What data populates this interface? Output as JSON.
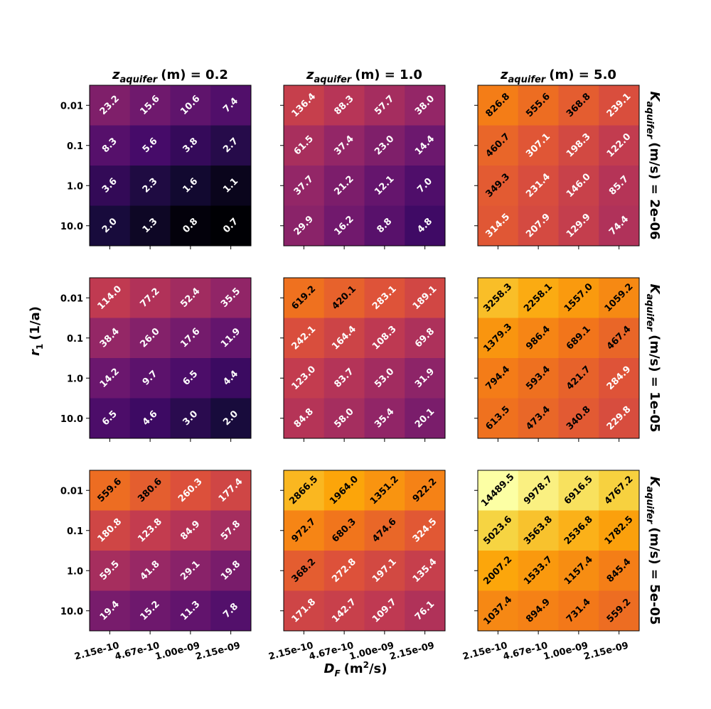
{
  "chart_data": {
    "type": "heatmap",
    "xlabel": "D",
    "xlabel_sub": "F",
    "xlabel_units": "(m",
    "xlabel_sup": "2",
    "xlabel_units_tail": "/s)",
    "ylabel": "r",
    "ylabel_sub": "1",
    "ylabel_units": "(1/a)",
    "x_categories": [
      "2.15e-10",
      "4.67e-10",
      "1.00e-09",
      "2.15e-09"
    ],
    "y_categories": [
      "0.01",
      "0.1",
      "1.0",
      "10.0"
    ],
    "column_title_prefix": "z",
    "column_title_sub": "aquifer",
    "column_title_mid": "(m) =",
    "column_values": [
      "0.2",
      "1.0",
      "5.0"
    ],
    "row_title_prefix": "K",
    "row_title_sub": "aquifer",
    "row_title_mid": "(m/s) =",
    "row_values": [
      "2e-06",
      "1e-05",
      "5e-05"
    ],
    "colormap": "inferno",
    "color_scale": "log",
    "color_range": [
      0.7,
      14489.5
    ],
    "panels": [
      [
        [
          [
            23.2,
            15.6,
            10.6,
            7.4
          ],
          [
            8.3,
            5.6,
            3.8,
            2.7
          ],
          [
            3.6,
            2.3,
            1.6,
            1.1
          ],
          [
            2.0,
            1.3,
            0.8,
            0.7
          ]
        ],
        [
          [
            136.4,
            88.3,
            57.7,
            38.0
          ],
          [
            61.5,
            37.4,
            23.0,
            14.4
          ],
          [
            37.7,
            21.2,
            12.1,
            7.0
          ],
          [
            29.9,
            16.2,
            8.8,
            4.8
          ]
        ],
        [
          [
            826.8,
            555.6,
            368.8,
            239.1
          ],
          [
            460.7,
            307.1,
            198.3,
            122.0
          ],
          [
            349.3,
            231.4,
            146.0,
            85.7
          ],
          [
            314.5,
            207.9,
            129.9,
            74.4
          ]
        ]
      ],
      [
        [
          [
            114.0,
            77.2,
            52.4,
            35.5
          ],
          [
            38.4,
            26.0,
            17.6,
            11.9
          ],
          [
            14.2,
            9.7,
            6.5,
            4.4
          ],
          [
            6.5,
            4.6,
            3.0,
            2.0
          ]
        ],
        [
          [
            619.2,
            420.1,
            283.1,
            189.1
          ],
          [
            242.1,
            164.4,
            108.3,
            69.8
          ],
          [
            123.0,
            83.7,
            53.0,
            31.9
          ],
          [
            84.8,
            58.0,
            35.4,
            20.1
          ]
        ],
        [
          [
            3258.3,
            2258.1,
            1557.0,
            1059.2
          ],
          [
            1379.3,
            986.4,
            689.1,
            467.4
          ],
          [
            794.4,
            593.4,
            421.7,
            284.9
          ],
          [
            613.5,
            473.4,
            340.8,
            229.8
          ]
        ]
      ],
      [
        [
          [
            559.6,
            380.6,
            260.3,
            177.4
          ],
          [
            180.8,
            123.8,
            84.9,
            57.8
          ],
          [
            59.5,
            41.8,
            29.1,
            19.8
          ],
          [
            19.4,
            15.2,
            11.3,
            7.8
          ]
        ],
        [
          [
            2866.5,
            1964.0,
            1351.2,
            922.2
          ],
          [
            972.7,
            680.3,
            474.6,
            324.5
          ],
          [
            368.2,
            272.8,
            197.1,
            135.4
          ],
          [
            171.8,
            142.7,
            109.7,
            76.1
          ]
        ],
        [
          [
            14489.5,
            9978.7,
            6916.5,
            4767.2
          ],
          [
            5023.6,
            3563.8,
            2536.8,
            1782.5
          ],
          [
            2007.2,
            1533.7,
            1157.4,
            845.4
          ],
          [
            1037.4,
            894.9,
            731.4,
            559.2
          ]
        ]
      ]
    ]
  }
}
